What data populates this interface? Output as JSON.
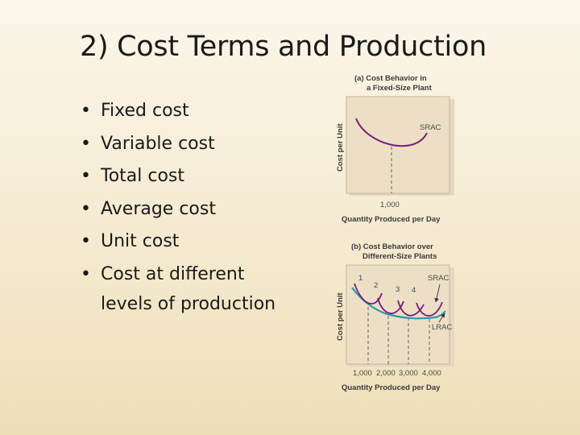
{
  "title": "2) Cost Terms and Production",
  "bullets": [
    {
      "text": "Fixed cost"
    },
    {
      "text": "Variable cost"
    },
    {
      "text": "Total cost"
    },
    {
      "text": "Average cost"
    },
    {
      "text": "Unit cost"
    },
    {
      "text": "Cost at different",
      "cont": "levels of production"
    }
  ],
  "diagram_a": {
    "heading_1": "(a) Cost Behavior in",
    "heading_2": "a Fixed-Size Plant",
    "y_label": "Cost per Unit",
    "x_label": "Quantity Produced per Day",
    "curve_label": "SRAC",
    "tick": "1,000",
    "curve_color": "#7a1e7a"
  },
  "diagram_b": {
    "heading_1": "(b) Cost Behavior over",
    "heading_2": "Different-Size Plants",
    "y_label": "Cost per Unit",
    "x_label": "Quantity Produced per Day",
    "srac_label": "SRAC",
    "lrac_label": "LRAC",
    "plant_numbers": [
      "1",
      "2",
      "3",
      "4"
    ],
    "ticks": [
      "1,000",
      "2,000",
      "3,000",
      "4,000"
    ],
    "srac_color": "#7a1e7a",
    "lrac_color": "#2e9aa8"
  }
}
